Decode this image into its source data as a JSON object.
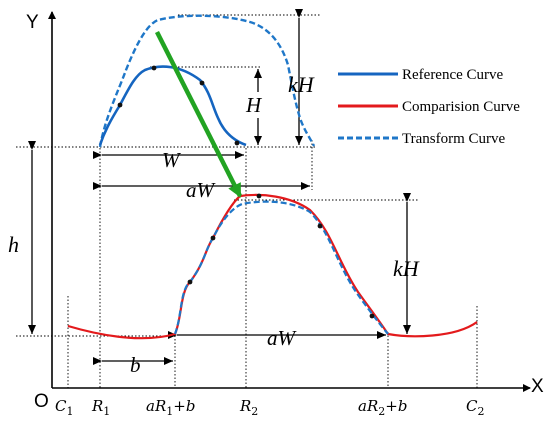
{
  "axes": {
    "y_label": "Y",
    "x_label": "X",
    "origin_label": "O"
  },
  "x_ticks": {
    "c1_main": "C",
    "c1_sub": "1",
    "r1_main": "R",
    "r1_sub": "1",
    "ar1b_a": "a",
    "ar1b_R": "R",
    "ar1b_sub": "1",
    "ar1b_tail": "+b",
    "r2_main": "R",
    "r2_sub": "2",
    "ar2b_a": "a",
    "ar2b_R": "R",
    "ar2b_sub": "2",
    "ar2b_tail": "+b",
    "c2_main": "C",
    "c2_sub": "2"
  },
  "dimensions": {
    "w": "W",
    "aw_top": "aW",
    "aw_bottom": "aW",
    "h_small": "H",
    "kh_top": "kH",
    "kh_bottom": "kH",
    "h_offset": "h",
    "b_offset": "b"
  },
  "legend": {
    "reference": "Reference Curve",
    "comparison": "Comparision Curve",
    "transform": "Transform Curve"
  },
  "colors": {
    "reference": "#1565c0",
    "comparison": "#e31a1c",
    "transform": "#1f77c8",
    "arrow": "#22a322",
    "axis": "#000000"
  }
}
